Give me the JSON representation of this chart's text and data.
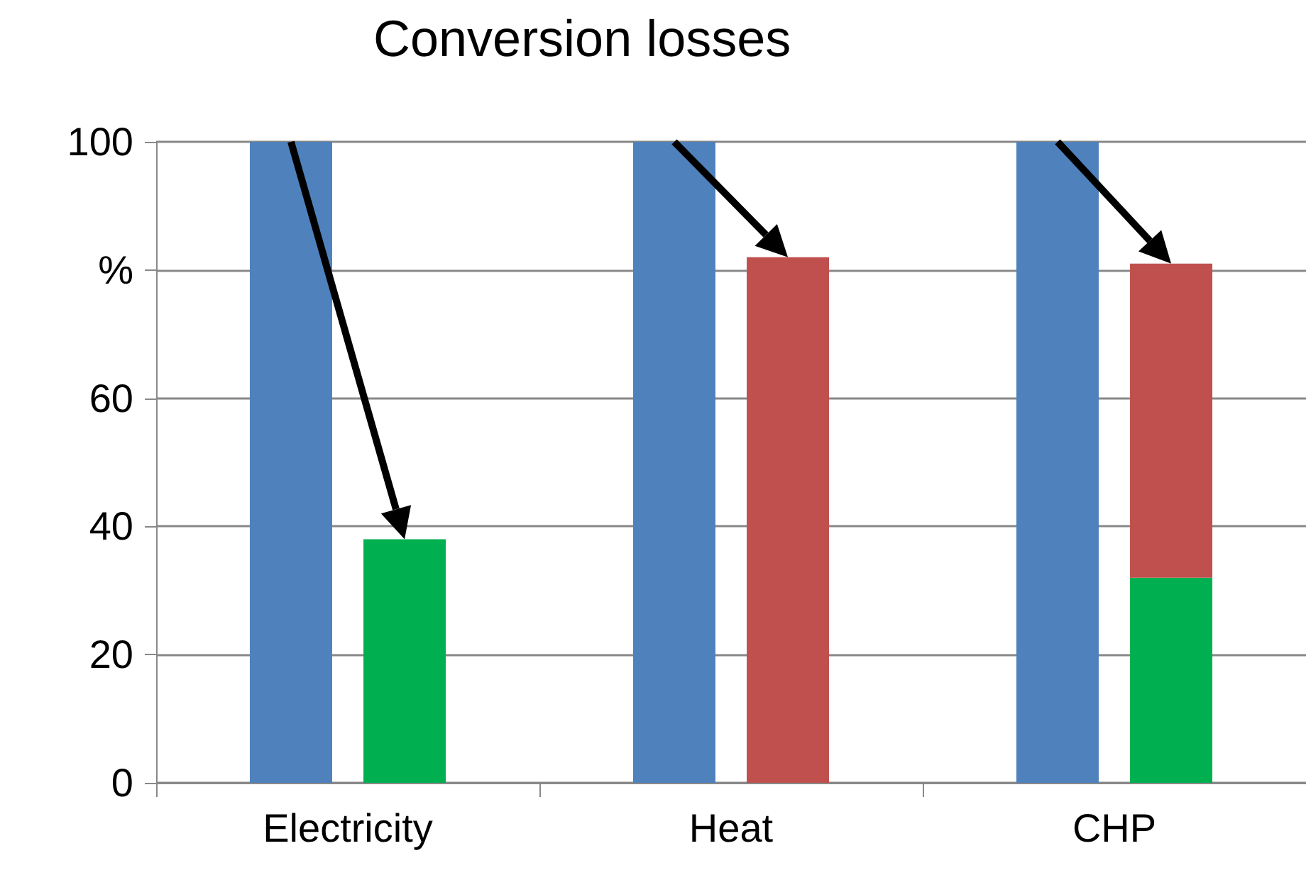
{
  "chart_data": {
    "type": "bar",
    "title": "Conversion losses",
    "categories": [
      "Electricity",
      "Heat",
      "CHP"
    ],
    "series": [
      {
        "color": "#4f81bd",
        "values": [
          100,
          100,
          100
        ]
      },
      {
        "color": "#00b050",
        "values": [
          38,
          null,
          32
        ]
      },
      {
        "color": "#c0504d",
        "values": [
          null,
          82,
          49
        ],
        "base": [
          null,
          0,
          32
        ]
      }
    ],
    "ylim": [
      0,
      100
    ],
    "yticks": [
      0,
      20,
      40,
      60,
      {
        "value": 80,
        "label": "%"
      },
      100
    ],
    "grid": "y"
  }
}
